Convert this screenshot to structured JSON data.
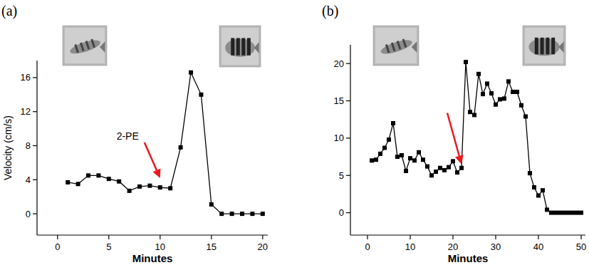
{
  "chart_data": [
    {
      "type": "line",
      "title": "(a)",
      "x_label": "Minutes",
      "y_label": "Velocity (cm/s)",
      "x": [
        1,
        2,
        3,
        4,
        5,
        6,
        7,
        8,
        9,
        10,
        11,
        12,
        13,
        14,
        15,
        16,
        17,
        18,
        19,
        20
      ],
      "values": [
        3.7,
        3.5,
        4.5,
        4.5,
        4.1,
        3.8,
        2.7,
        3.2,
        3.3,
        3.1,
        3.0,
        7.8,
        16.6,
        14.0,
        1.1,
        0,
        0,
        0,
        0,
        0
      ],
      "color": "#000000",
      "marker": "square",
      "xlim": [
        -2,
        20.5
      ],
      "xticks": [
        0,
        5,
        10,
        15,
        20
      ],
      "ylim": [
        -2.5,
        18
      ],
      "yticks": [
        0,
        4,
        8,
        12,
        16
      ],
      "annotations": [
        {
          "text": "2-PE",
          "x": 10,
          "y": 4.2,
          "color": "#e8191f"
        }
      ]
    },
    {
      "type": "line",
      "title": "(b)",
      "x_label": "Minutes",
      "x": [
        1,
        2,
        3,
        4,
        5,
        6,
        7,
        8,
        9,
        10,
        11,
        12,
        13,
        14,
        15,
        16,
        17,
        18,
        19,
        20,
        21,
        22,
        23,
        24,
        25,
        26,
        27,
        28,
        29,
        30,
        31,
        32,
        33,
        34,
        35,
        36,
        37,
        38,
        39,
        40,
        41,
        42,
        43,
        44,
        45,
        46,
        47,
        48,
        49,
        50
      ],
      "values": [
        7.0,
        7.1,
        7.9,
        8.7,
        9.8,
        12.0,
        7.5,
        7.7,
        5.6,
        7.3,
        7.0,
        8.1,
        7.1,
        6.2,
        5.0,
        5.5,
        6.0,
        5.7,
        6.1,
        6.9,
        5.4,
        6.0,
        20.2,
        13.5,
        13.1,
        18.6,
        15.9,
        17.3,
        16.0,
        14.5,
        15.2,
        15.3,
        17.6,
        16.2,
        16.2,
        14.4,
        12.9,
        5.3,
        3.4,
        2.3,
        3.0,
        0.4,
        0,
        0,
        0,
        0,
        0,
        0,
        0,
        0
      ],
      "color": "#000000",
      "marker": "square",
      "xlim": [
        -4,
        51
      ],
      "xticks": [
        0,
        10,
        20,
        30,
        40,
        50
      ],
      "ylim": [
        -3,
        22.5
      ],
      "yticks": [
        0,
        5,
        10,
        15,
        20
      ],
      "annotations": [
        {
          "x": 22,
          "y": 6.5,
          "color": "#e8191f"
        }
      ]
    }
  ]
}
